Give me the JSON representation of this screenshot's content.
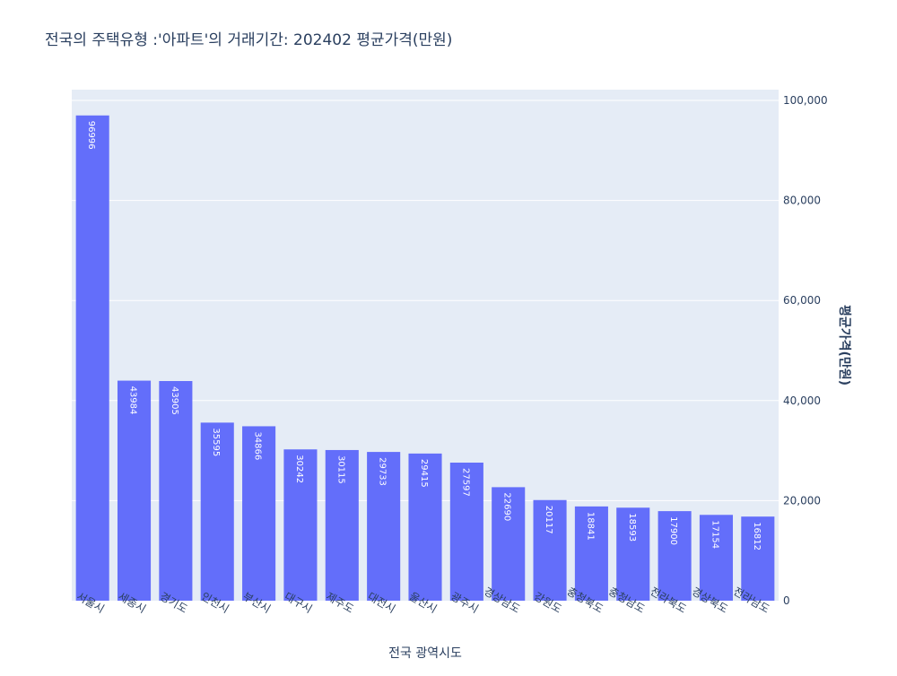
{
  "chart_data": {
    "type": "bar",
    "title": "전국의 주택유형 :'아파트'의 거래기간: 202402 평균가격(만원)",
    "xlabel": "전국 광역시도",
    "ylabel": "평균가격(만원)",
    "ylim": [
      0,
      100000
    ],
    "yticks": [
      0,
      20000,
      40000,
      60000,
      80000,
      100000
    ],
    "ytick_labels": [
      "0",
      "20,000",
      "40,000",
      "60,000",
      "80,000",
      "100,000"
    ],
    "y_axis_side": "right",
    "grid": true,
    "categories": [
      "서울시",
      "세종시",
      "경기도",
      "인천시",
      "부산시",
      "대구시",
      "제주도",
      "대전시",
      "울산시",
      "광주시",
      "경상남도",
      "강원도",
      "충청북도",
      "충청남도",
      "전라북도",
      "경상북도",
      "전라남도"
    ],
    "values": [
      96996,
      43984,
      43905,
      35595,
      34866,
      30242,
      30115,
      29733,
      29415,
      27597,
      22690,
      20117,
      18841,
      18593,
      17900,
      17154,
      16812
    ],
    "colors": {
      "bar": "#636efa",
      "plot_bg": "#e5ecf6",
      "grid": "#ffffff",
      "text": "#2a3f5f",
      "label": "#ffffff"
    }
  }
}
